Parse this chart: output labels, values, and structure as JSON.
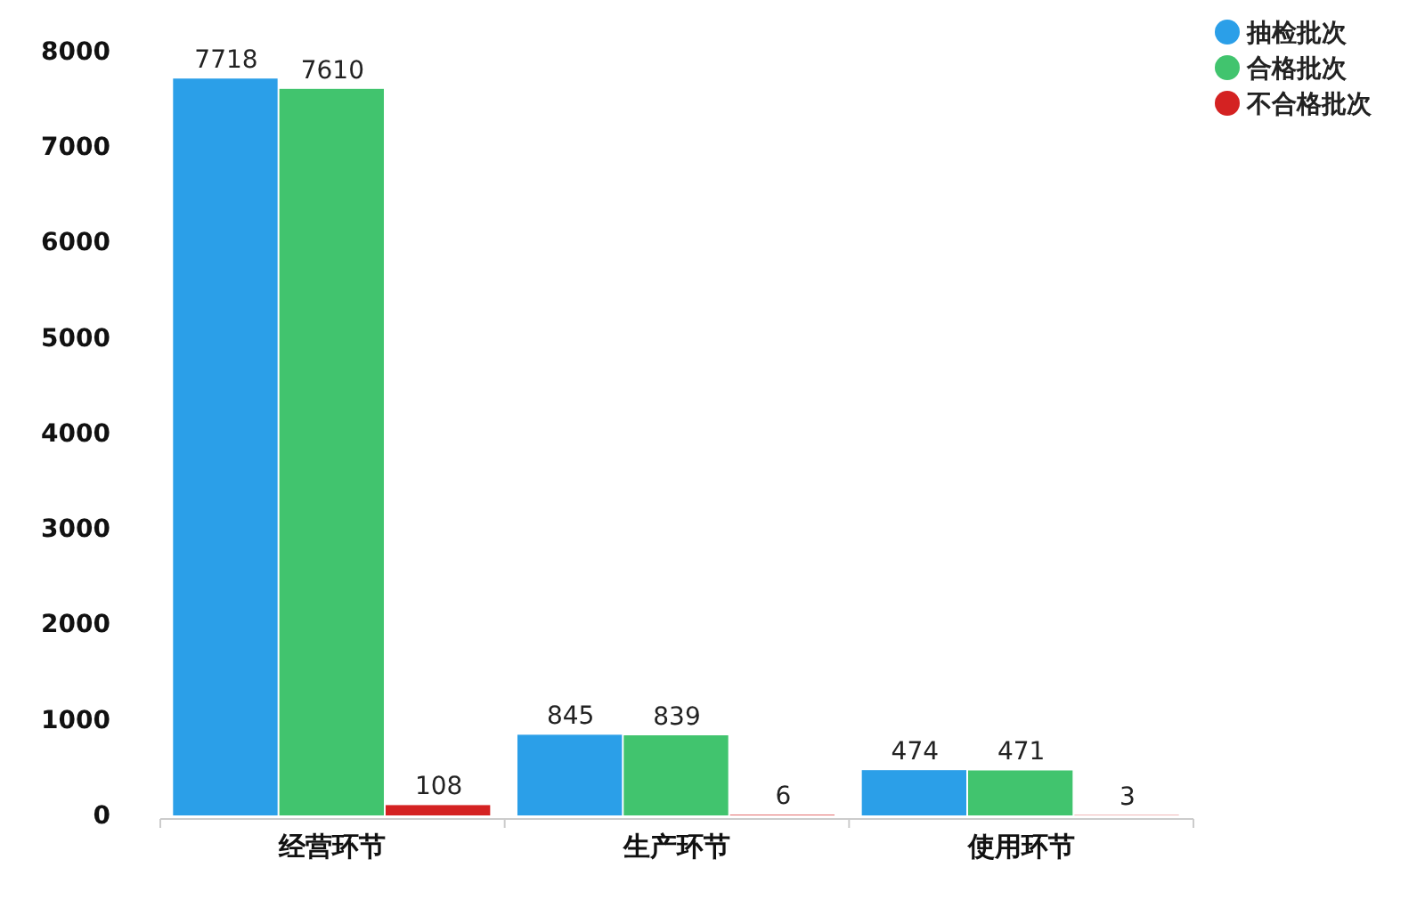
{
  "chart_data": {
    "type": "bar",
    "categories": [
      "经营环节",
      "生产环节",
      "使用环节"
    ],
    "series": [
      {
        "name": "抽检批次",
        "color": "#2b9fe8",
        "values": [
          7718,
          845,
          474
        ]
      },
      {
        "name": "合格批次",
        "color": "#41c46e",
        "values": [
          7610,
          839,
          471
        ]
      },
      {
        "name": "不合格批次",
        "color": "#d42222",
        "values": [
          108,
          6,
          3
        ]
      }
    ],
    "ylim": [
      0,
      8000
    ],
    "yticks": [
      0,
      1000,
      2000,
      3000,
      4000,
      5000,
      6000,
      7000,
      8000
    ],
    "grid": false,
    "legend": "top right",
    "data_labels": true
  }
}
